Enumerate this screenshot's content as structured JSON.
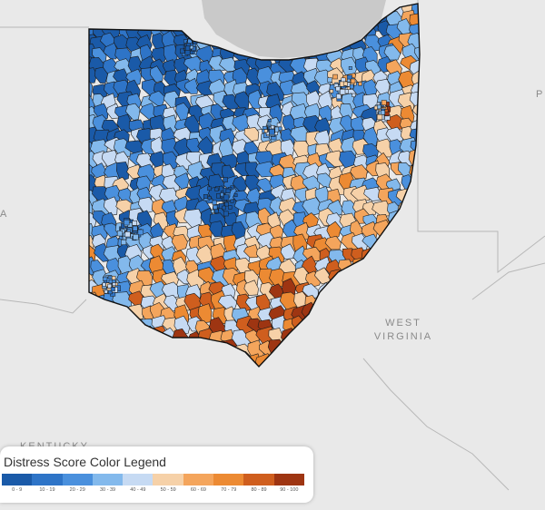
{
  "map": {
    "region": "Ohio",
    "neighbor_labels": {
      "wv_line1": "WEST",
      "wv_line2": "VIRGINIA",
      "ky": "KENTUCKY",
      "pa_partial": "P",
      "in_partial": "A"
    }
  },
  "legend": {
    "title": "Distress Score Color Legend",
    "bins": [
      {
        "label": "0 - 9",
        "color": "#1a5aa8"
      },
      {
        "label": "10 - 19",
        "color": "#2e74c7"
      },
      {
        "label": "20 - 29",
        "color": "#4a90dd"
      },
      {
        "label": "30 - 39",
        "color": "#83b9ec"
      },
      {
        "label": "40 - 49",
        "color": "#c6daf3"
      },
      {
        "label": "50 - 59",
        "color": "#f6d1a8"
      },
      {
        "label": "60 - 69",
        "color": "#f4a55c"
      },
      {
        "label": "70 - 79",
        "color": "#ec8a33"
      },
      {
        "label": "80 - 89",
        "color": "#cf5e1e"
      },
      {
        "label": "90 - 100",
        "color": "#9e3512"
      }
    ]
  },
  "colors": {
    "background": "#e9e9e9",
    "lake": "#c9c9c9",
    "border": "#1a1a1a"
  }
}
